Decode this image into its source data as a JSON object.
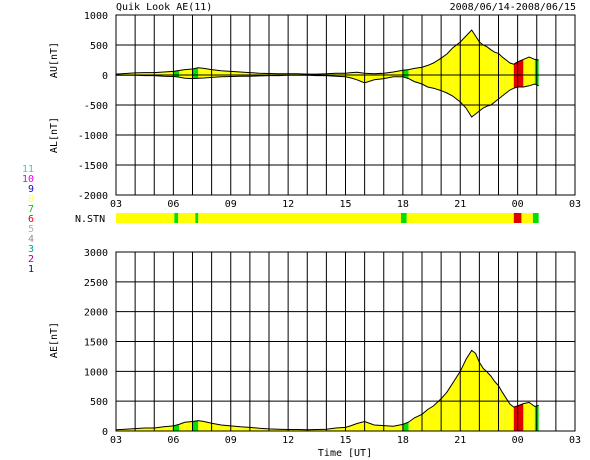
{
  "header": {
    "title": "Quik Look AE(11)",
    "date_range": "2008/06/14-2008/06/15"
  },
  "station_legend": [
    {
      "label": "11",
      "color": "#00e5e5"
    },
    {
      "label": "10",
      "color": "#e500e5"
    },
    {
      "label": "9",
      "color": "#2000c8"
    },
    {
      "label": "8",
      "color": "#ffff60"
    },
    {
      "label": "7",
      "color": "#00c800"
    },
    {
      "label": "6",
      "color": "#e50000"
    },
    {
      "label": "5",
      "color": "#b0b0b0"
    },
    {
      "label": "4",
      "color": "#909090"
    },
    {
      "label": "3",
      "color": "#00a0a0"
    },
    {
      "label": "2",
      "color": "#a000a0"
    },
    {
      "label": "1",
      "color": "#0000c8"
    }
  ],
  "colors": {
    "fill_default": "#ffff00",
    "station_7": "#00e000",
    "station_6": "#e00000",
    "grid": "#000000",
    "background": "#ffffff"
  },
  "chart_data": [
    {
      "type": "area",
      "name": "AU/AL",
      "ylabel_top": "AU[nT]",
      "ylabel_bottom": "AL[nT]",
      "xlim_hours": [
        3,
        27
      ],
      "ylim": [
        -2000,
        1000
      ],
      "y_ticks": [
        1000,
        500,
        0,
        -500,
        -1000,
        -1500,
        -2000
      ],
      "x_tick_labels": [
        "03",
        "06",
        "09",
        "12",
        "15",
        "18",
        "21",
        "00",
        "03"
      ],
      "grid": true,
      "x": [
        3.0,
        3.5,
        4.0,
        4.5,
        5.0,
        5.5,
        6.0,
        6.3,
        6.6,
        7.0,
        7.3,
        7.6,
        8.0,
        8.5,
        9.0,
        9.5,
        10.0,
        10.5,
        11.0,
        11.5,
        12.0,
        12.5,
        13.0,
        13.5,
        14.0,
        14.5,
        15.0,
        15.3,
        15.6,
        16.0,
        16.5,
        17.0,
        17.5,
        18.0,
        18.3,
        18.6,
        19.0,
        19.3,
        19.6,
        20.0,
        20.3,
        20.6,
        21.0,
        21.3,
        21.6,
        21.8,
        22.0,
        22.2,
        22.4,
        22.6,
        22.8,
        23.0,
        23.2,
        23.4,
        23.6,
        23.8,
        24.0,
        24.3,
        24.6,
        24.9,
        25.1
      ],
      "au": [
        15,
        25,
        35,
        40,
        40,
        50,
        60,
        75,
        90,
        100,
        120,
        110,
        90,
        70,
        60,
        50,
        40,
        30,
        25,
        20,
        20,
        20,
        15,
        15,
        20,
        30,
        30,
        40,
        45,
        30,
        20,
        30,
        50,
        80,
        90,
        110,
        130,
        160,
        200,
        280,
        350,
        450,
        550,
        650,
        750,
        650,
        550,
        500,
        470,
        420,
        380,
        360,
        300,
        250,
        200,
        180,
        220,
        260,
        300,
        260,
        250
      ],
      "al": [
        -5,
        -5,
        -5,
        -10,
        -10,
        -20,
        -25,
        -35,
        -55,
        -60,
        -55,
        -50,
        -40,
        -30,
        -25,
        -20,
        -20,
        -15,
        -10,
        -10,
        -5,
        -5,
        -5,
        -10,
        -10,
        -20,
        -30,
        -50,
        -80,
        -130,
        -80,
        -60,
        -30,
        -30,
        -60,
        -110,
        -150,
        -200,
        -220,
        -260,
        -300,
        -350,
        -450,
        -550,
        -700,
        -650,
        -600,
        -550,
        -520,
        -500,
        -450,
        -400,
        -350,
        -300,
        -250,
        -220,
        -200,
        -200,
        -180,
        -150,
        -180
      ]
    },
    {
      "type": "area",
      "name": "AE",
      "ylabel": "AE[nT]",
      "xlabel": "Time [UT]",
      "xlim_hours": [
        3,
        27
      ],
      "ylim": [
        0,
        3000
      ],
      "y_ticks": [
        3000,
        2500,
        2000,
        1500,
        1000,
        500,
        0
      ],
      "x_tick_labels": [
        "03",
        "06",
        "09",
        "12",
        "15",
        "18",
        "21",
        "00",
        "03"
      ],
      "grid": true,
      "x": [
        3.0,
        3.5,
        4.0,
        4.5,
        5.0,
        5.5,
        6.0,
        6.3,
        6.6,
        7.0,
        7.3,
        7.6,
        8.0,
        8.5,
        9.0,
        9.5,
        10.0,
        10.5,
        11.0,
        11.5,
        12.0,
        12.5,
        13.0,
        13.5,
        14.0,
        14.5,
        15.0,
        15.3,
        15.6,
        16.0,
        16.5,
        17.0,
        17.5,
        18.0,
        18.3,
        18.6,
        19.0,
        19.3,
        19.6,
        20.0,
        20.3,
        20.6,
        21.0,
        21.3,
        21.6,
        21.8,
        22.0,
        22.2,
        22.4,
        22.6,
        22.8,
        23.0,
        23.2,
        23.4,
        23.6,
        23.8,
        24.0,
        24.3,
        24.6,
        24.9,
        25.1
      ],
      "ae": [
        20,
        30,
        40,
        50,
        50,
        70,
        85,
        110,
        145,
        160,
        175,
        160,
        130,
        100,
        85,
        70,
        60,
        45,
        35,
        30,
        25,
        25,
        20,
        25,
        30,
        50,
        60,
        90,
        125,
        160,
        100,
        90,
        80,
        110,
        150,
        220,
        280,
        360,
        420,
        540,
        650,
        800,
        1000,
        1200,
        1350,
        1300,
        1150,
        1050,
        990,
        920,
        830,
        760,
        650,
        550,
        450,
        400,
        420,
        460,
        480,
        410,
        430
      ]
    }
  ],
  "station_bar": {
    "label": "N.STN",
    "segments": [
      {
        "from": 3.0,
        "to": 6.05,
        "color_key": "fill_default"
      },
      {
        "from": 6.05,
        "to": 6.25,
        "color_key": "station_7"
      },
      {
        "from": 6.25,
        "to": 7.15,
        "color_key": "fill_default"
      },
      {
        "from": 7.15,
        "to": 7.3,
        "color_key": "station_7"
      },
      {
        "from": 7.3,
        "to": 17.9,
        "color_key": "fill_default"
      },
      {
        "from": 17.9,
        "to": 18.2,
        "color_key": "station_7"
      },
      {
        "from": 18.2,
        "to": 23.8,
        "color_key": "fill_default"
      },
      {
        "from": 23.8,
        "to": 24.2,
        "color_key": "station_6"
      },
      {
        "from": 24.2,
        "to": 24.8,
        "color_key": "fill_default"
      },
      {
        "from": 24.8,
        "to": 25.1,
        "color_key": "station_7"
      }
    ]
  }
}
